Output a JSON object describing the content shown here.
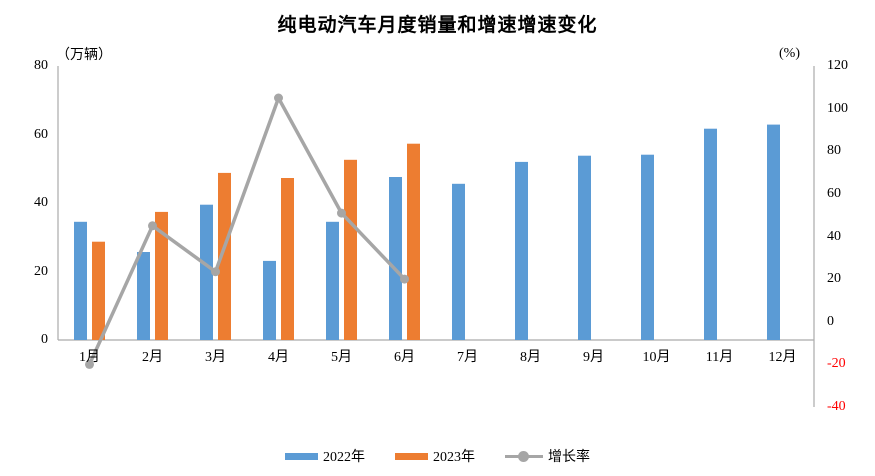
{
  "chart_data": {
    "type": "bar+line-combo",
    "title": "纯电动汽车月度销量和增速增速变化",
    "ylabel_left": "（万辆）",
    "ylabel_right": "(%)",
    "categories": [
      "1月",
      "2月",
      "3月",
      "4月",
      "5月",
      "6月",
      "7月",
      "8月",
      "9月",
      "10月",
      "11月",
      "12月"
    ],
    "series": [
      {
        "name": "2022年",
        "type": "bar",
        "axis": "left",
        "color": "#5B9BD5",
        "values": [
          34.5,
          25.7,
          39.5,
          23.1,
          34.5,
          47.6,
          45.6,
          52.0,
          53.8,
          54.1,
          61.7,
          62.9
        ]
      },
      {
        "name": "2023年",
        "type": "bar",
        "axis": "left",
        "color": "#ED7D31",
        "values": [
          28.7,
          37.4,
          48.8,
          47.3,
          52.6,
          57.3
        ]
      },
      {
        "name": "增长率",
        "type": "line",
        "axis": "right",
        "color": "#A6A6A6",
        "values": [
          -20,
          45,
          23.5,
          105,
          51,
          20
        ]
      }
    ],
    "left_axis": {
      "ticks": [
        80,
        60,
        40,
        20,
        0
      ],
      "ylim": [
        0,
        80
      ]
    },
    "right_axis": {
      "ticks": [
        120,
        100,
        80,
        60,
        40,
        20,
        0,
        -20,
        -40
      ],
      "ylim": [
        -40,
        120
      ]
    },
    "grid": false,
    "legend_position": "bottom",
    "colors": {
      "axis_line": "#ABABAB",
      "negative_tick_text": "#FF0000",
      "background": "#FFFFFF",
      "title_text": "#000000"
    }
  }
}
